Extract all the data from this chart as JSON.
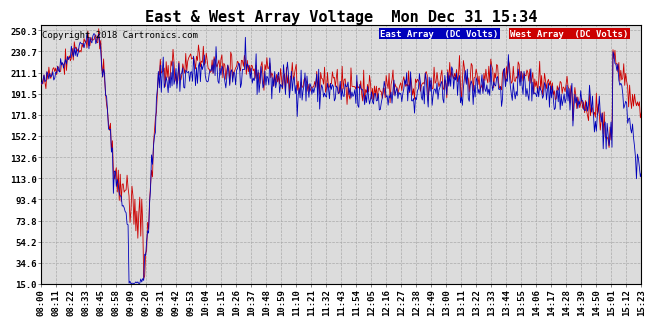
{
  "title": "East & West Array Voltage  Mon Dec 31 15:34",
  "copyright": "Copyright 2018 Cartronics.com",
  "legend_east": "East Array  (DC Volts)",
  "legend_west": "West Array  (DC Volts)",
  "east_color": "#0000bb",
  "west_color": "#cc0000",
  "legend_east_bg": "#0000bb",
  "legend_west_bg": "#cc0000",
  "background_color": "#ffffff",
  "plot_bg_color": "#dcdcdc",
  "grid_color": "#aaaaaa",
  "yticks": [
    15.0,
    34.6,
    54.2,
    73.8,
    93.4,
    113.0,
    132.6,
    152.2,
    171.8,
    191.5,
    211.1,
    230.7,
    250.3
  ],
  "ylim": [
    15.0,
    255.0
  ],
  "xtick_labels": [
    "08:00",
    "08:11",
    "08:22",
    "08:33",
    "08:45",
    "08:58",
    "09:09",
    "09:20",
    "09:31",
    "09:42",
    "09:53",
    "10:04",
    "10:15",
    "10:26",
    "10:37",
    "10:48",
    "10:59",
    "11:10",
    "11:21",
    "11:32",
    "11:43",
    "11:54",
    "12:05",
    "12:16",
    "12:27",
    "12:38",
    "12:49",
    "13:00",
    "13:11",
    "13:22",
    "13:33",
    "13:44",
    "13:55",
    "14:06",
    "14:17",
    "14:28",
    "14:39",
    "14:50",
    "15:01",
    "15:12",
    "15:23"
  ],
  "title_fontsize": 11,
  "axis_fontsize": 6.5,
  "copyright_fontsize": 6.5,
  "legend_fontsize": 6.5
}
